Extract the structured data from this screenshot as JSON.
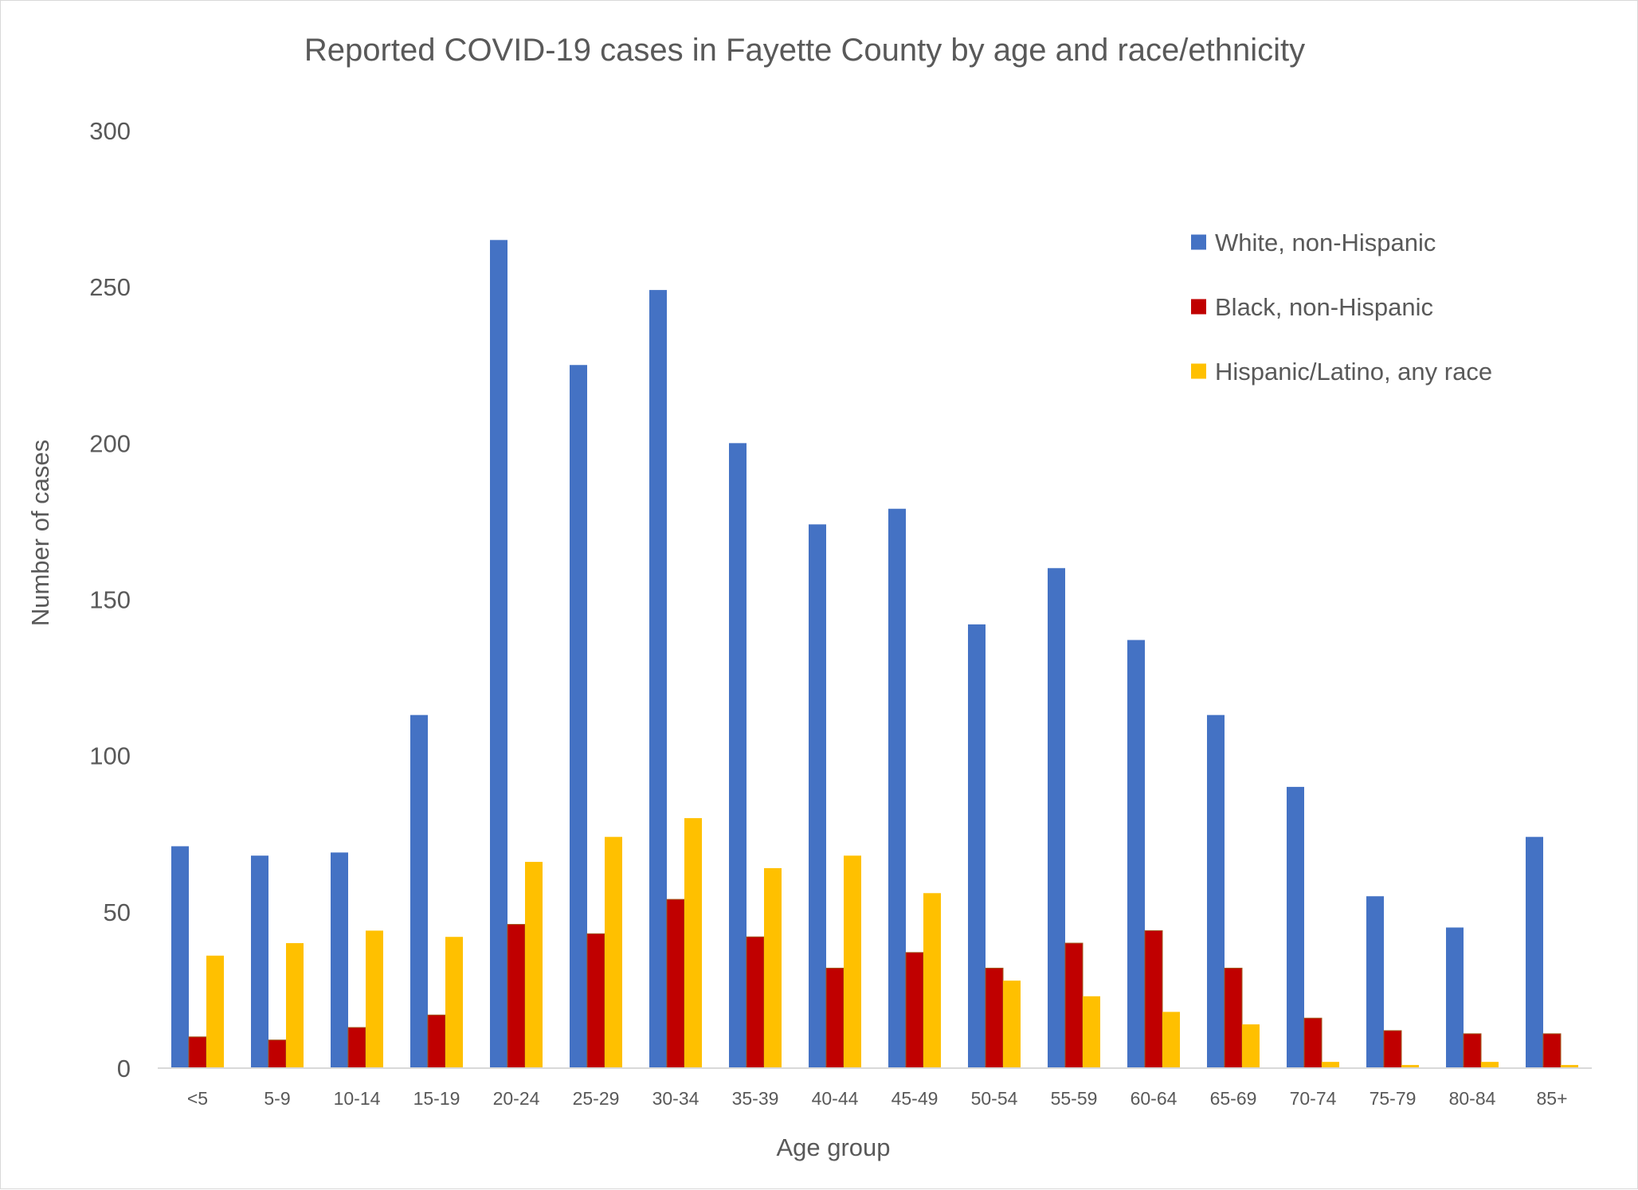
{
  "chart_data": {
    "type": "bar",
    "title": "Reported COVID-19 cases in Fayette County by age and race/ethnicity",
    "xlabel": "Age group",
    "ylabel": "Number of cases",
    "ylim": [
      0,
      300
    ],
    "yticks": [
      0,
      50,
      100,
      150,
      200,
      250,
      300
    ],
    "grid": false,
    "legend_position": "top-right",
    "categories": [
      "<5",
      "5-9",
      "10-14",
      "15-19",
      "20-24",
      "25-29",
      "30-34",
      "35-39",
      "40-44",
      "45-49",
      "50-54",
      "55-59",
      "60-64",
      "65-69",
      "70-74",
      "75-79",
      "80-84",
      "85+"
    ],
    "series": [
      {
        "name": "White, non-Hispanic",
        "color": "#4472C4",
        "values": [
          71,
          68,
          69,
          113,
          265,
          225,
          249,
          200,
          174,
          179,
          142,
          160,
          137,
          113,
          90,
          55,
          45,
          74
        ]
      },
      {
        "name": "Black, non-Hispanic",
        "color": "#C00000",
        "values": [
          10,
          9,
          13,
          17,
          46,
          43,
          54,
          42,
          32,
          37,
          32,
          40,
          44,
          32,
          16,
          12,
          11,
          11
        ]
      },
      {
        "name": "Hispanic/Latino, any race",
        "color": "#FFC000",
        "values": [
          36,
          40,
          44,
          42,
          66,
          74,
          80,
          64,
          68,
          56,
          28,
          23,
          18,
          14,
          2,
          1,
          2,
          1
        ]
      }
    ]
  }
}
